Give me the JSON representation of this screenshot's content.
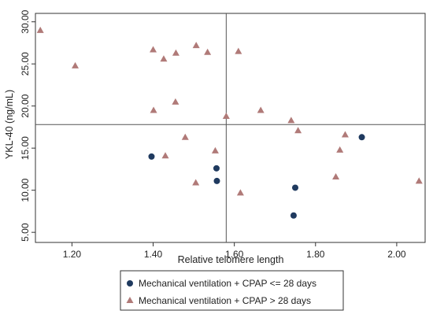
{
  "chart_data": {
    "type": "scatter",
    "xlabel": "Relative telomere length",
    "ylabel": "YKL-40 (ng/mL)",
    "xlim": [
      1.11,
      2.07
    ],
    "ylim": [
      3.8,
      31.0
    ],
    "x_ticks": [
      1.2,
      1.4,
      1.6,
      1.8,
      2.0
    ],
    "x_tick_labels": [
      "1.20",
      "1.40",
      "1.60",
      "1.80",
      "2.00"
    ],
    "y_ticks": [
      5,
      10,
      15,
      20,
      25,
      30
    ],
    "y_tick_labels": [
      "5.00",
      "10.00",
      "15.00",
      "20.00",
      "25.00",
      "30.00"
    ],
    "grid": false,
    "reference_lines": {
      "x": 1.58,
      "y": 17.8
    },
    "legend_position": "bottom",
    "series": [
      {
        "name": "Mechanical ventilation + CPAP <= 28 days",
        "marker": "circle",
        "color": "#1f3a5f",
        "points": [
          {
            "x": 1.396,
            "y": 14.0
          },
          {
            "x": 1.556,
            "y": 12.6
          },
          {
            "x": 1.557,
            "y": 11.1
          },
          {
            "x": 1.75,
            "y": 10.3
          },
          {
            "x": 1.746,
            "y": 7.0
          },
          {
            "x": 1.914,
            "y": 16.3
          }
        ]
      },
      {
        "name": "Mechanical ventilation + CPAP > 28 days",
        "marker": "triangle",
        "color": "#b07a78",
        "points": [
          {
            "x": 1.122,
            "y": 29.0
          },
          {
            "x": 1.208,
            "y": 24.8
          },
          {
            "x": 1.4,
            "y": 26.7
          },
          {
            "x": 1.426,
            "y": 25.6
          },
          {
            "x": 1.456,
            "y": 26.3
          },
          {
            "x": 1.506,
            "y": 27.2
          },
          {
            "x": 1.534,
            "y": 26.4
          },
          {
            "x": 1.61,
            "y": 26.5
          },
          {
            "x": 1.401,
            "y": 19.5
          },
          {
            "x": 1.455,
            "y": 20.5
          },
          {
            "x": 1.58,
            "y": 18.8
          },
          {
            "x": 1.665,
            "y": 19.5
          },
          {
            "x": 1.74,
            "y": 18.3
          },
          {
            "x": 1.757,
            "y": 17.1
          },
          {
            "x": 1.873,
            "y": 16.6
          },
          {
            "x": 1.479,
            "y": 16.3
          },
          {
            "x": 1.43,
            "y": 14.1
          },
          {
            "x": 1.553,
            "y": 14.7
          },
          {
            "x": 1.86,
            "y": 14.8
          },
          {
            "x": 1.505,
            "y": 10.9
          },
          {
            "x": 1.615,
            "y": 9.7
          },
          {
            "x": 1.85,
            "y": 11.6
          },
          {
            "x": 2.055,
            "y": 11.1
          }
        ]
      }
    ]
  }
}
